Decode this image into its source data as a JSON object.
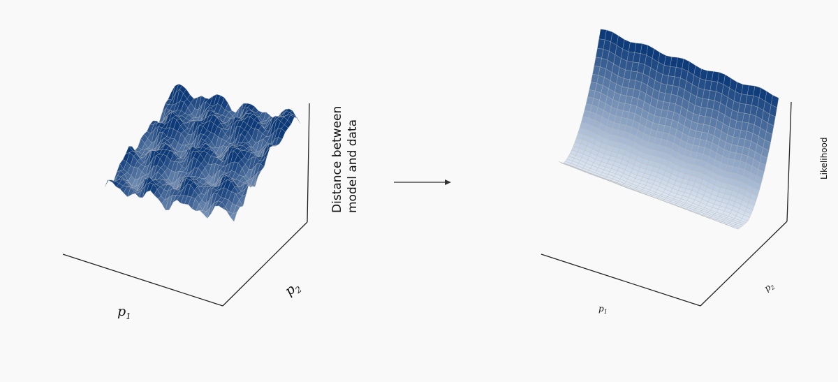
{
  "left_plot": {
    "x_label": "p",
    "x_label_sub": "1",
    "y_label": "p",
    "y_label_sub": "2",
    "z_label_line1": "Distance between",
    "z_label_line2": "model and data",
    "surface": "rugged multi-peak surface",
    "colormap": "Blues"
  },
  "arrow": {
    "direction": "right"
  },
  "right_plot": {
    "x_label": "p",
    "x_label_sub": "1",
    "y_label": "p",
    "y_label_sub": "2",
    "z_label": "Likelihood",
    "surface": "smooth valley-shaped surface",
    "colormap": "Blues"
  },
  "colors": {
    "background": "#f9f9f9",
    "surface_light": "#e6eef8",
    "surface_dark": "#0d3b7a",
    "grid": "#b8b8b8",
    "axis": "#222222"
  }
}
